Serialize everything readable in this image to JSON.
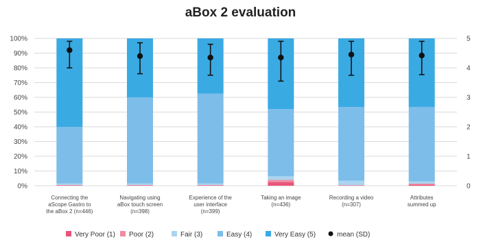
{
  "chart_data": {
    "type": "bar",
    "stacked": true,
    "title": "aBox 2 evaluation",
    "categories": [
      [
        "Connecting the",
        "aScope Gastro to",
        "the aBox 2 (n=446)"
      ],
      [
        "Navigating using",
        "aBox touch screen",
        "(n=398)"
      ],
      [
        "Experience of the",
        "user interface",
        "(n=399)"
      ],
      [
        "Taking an image",
        "(n=436)"
      ],
      [
        "Recording a video",
        "(n=307)"
      ],
      [
        "Attributes",
        "summed up"
      ]
    ],
    "y_ticks": [
      "0%",
      "10%",
      "20%",
      "30%",
      "40%",
      "50%",
      "60%",
      "70%",
      "80%",
      "90%",
      "100%"
    ],
    "y2_ticks": [
      "0",
      "1",
      "2",
      "3",
      "4",
      "5"
    ],
    "ylim": [
      0,
      100
    ],
    "y2lim": [
      0,
      5
    ],
    "series": [
      {
        "name": "Very Poor (1)",
        "color": "#e8557a",
        "values": [
          0.3,
          0.3,
          0.3,
          2.5,
          0.2,
          0.8
        ]
      },
      {
        "name": "Poor (2)",
        "color": "#f08da2",
        "values": [
          0.2,
          0.2,
          0.2,
          1.5,
          0.2,
          0.6
        ]
      },
      {
        "name": "Fair (3)",
        "color": "#aad4ef",
        "values": [
          1.0,
          1.0,
          1.0,
          2.5,
          3.0,
          1.5
        ]
      },
      {
        "name": "Easy (4)",
        "color": "#7dbde9",
        "values": [
          38.5,
          58.5,
          61.0,
          45.5,
          50.0,
          50.6
        ]
      },
      {
        "name": "Very Easy (5)",
        "color": "#3aaae3",
        "values": [
          60.0,
          40.0,
          37.5,
          48.0,
          46.6,
          46.5
        ]
      }
    ],
    "mean_series": {
      "name": "mean (SD)",
      "color": "#111111",
      "mean": [
        4.6,
        4.4,
        4.35,
        4.35,
        4.45,
        4.42
      ],
      "low": [
        4.0,
        3.8,
        3.75,
        3.55,
        3.75,
        3.77
      ],
      "high": [
        4.9,
        4.85,
        4.8,
        4.9,
        4.9,
        4.9
      ]
    },
    "legend_position": "bottom"
  }
}
